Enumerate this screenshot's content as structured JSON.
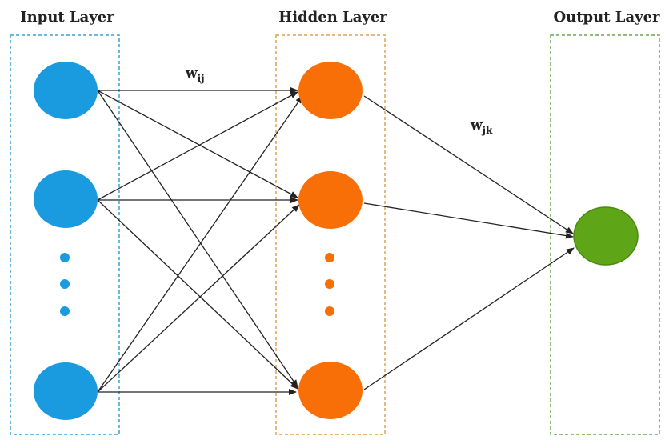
{
  "layers": {
    "input": {
      "title": "Input Layer",
      "node_color": "#1a9be0",
      "box_color": "#3d9fd6",
      "nodes_drawn": 3,
      "ellipsis_dots": 3
    },
    "hidden": {
      "title": "Hidden Layer",
      "node_color": "#f76f06",
      "box_color": "#e0a050",
      "nodes_drawn": 3,
      "ellipsis_dots": 3
    },
    "output": {
      "title": "Output Layer",
      "node_color": "#5ea517",
      "node_border": "#4a8a10",
      "box_color": "#6aa84f",
      "nodes_drawn": 1
    }
  },
  "weights": {
    "input_hidden": {
      "base": "w",
      "subscript": "ij"
    },
    "hidden_output": {
      "base": "w",
      "subscript": "jk"
    }
  },
  "colors": {
    "arrow": "#222222"
  }
}
